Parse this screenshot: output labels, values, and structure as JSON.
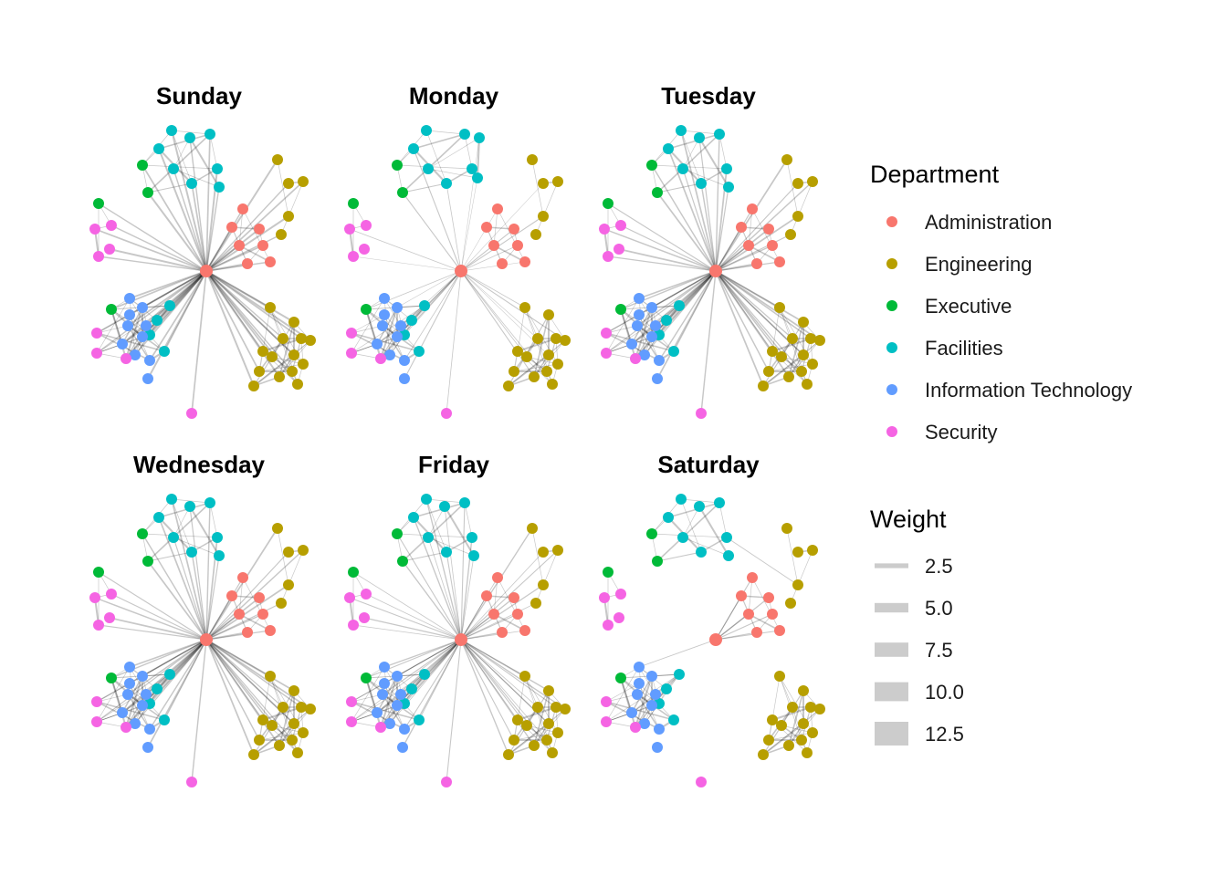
{
  "chart_data": {
    "type": "network",
    "panels": [
      "Sunday",
      "Monday",
      "Tuesday",
      "Wednesday",
      "Friday",
      "Saturday"
    ],
    "legend": {
      "department": {
        "title": "Department",
        "items": [
          {
            "label": "Administration",
            "color": "#F8766D"
          },
          {
            "label": "Engineering",
            "color": "#B79F00"
          },
          {
            "label": "Executive",
            "color": "#00BA38"
          },
          {
            "label": "Facilities",
            "color": "#00BFC4"
          },
          {
            "label": "Information Technology",
            "color": "#619CFF"
          },
          {
            "label": "Security",
            "color": "#F564E3"
          }
        ]
      },
      "weight": {
        "title": "Weight",
        "items": [
          {
            "label": "2.5",
            "value": 2.5
          },
          {
            "label": "5.0",
            "value": 5.0
          },
          {
            "label": "7.5",
            "value": 7.5
          },
          {
            "label": "10.0",
            "value": 10.0
          },
          {
            "label": "12.5",
            "value": 12.5
          }
        ]
      }
    }
  }
}
